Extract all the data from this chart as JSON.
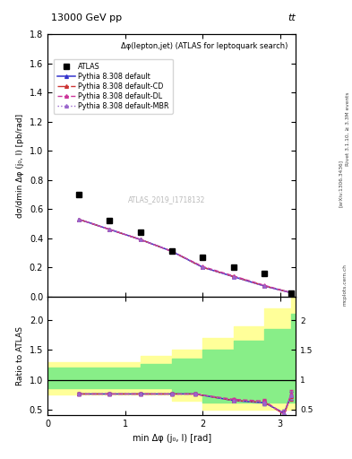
{
  "title_top": "13000 GeV pp",
  "title_right": "tt",
  "annotation": "Δφ(lepton,jet) (ATLAS for leptoquark search)",
  "watermark": "ATLAS_2019_I1718132",
  "ylabel_main": "dσ/dmin Δφ (j₀, l) [pb/rad]",
  "ylabel_ratio": "Ratio to ATLAS",
  "xlabel": "min Δφ (j₀, l) [rad]",
  "rivet_label": "Rivet 3.1.10, ≥ 3.3M events",
  "arxiv_label": "[arXiv:1306.3436]",
  "mcplots_label": "mcplots.cern.ch",
  "xlim": [
    0,
    3.2
  ],
  "ylim_main": [
    0,
    1.8
  ],
  "ylim_ratio": [
    0.4,
    2.4
  ],
  "atlas_x": [
    0.4,
    0.8,
    1.2,
    1.6,
    2.0,
    2.4,
    2.8,
    3.14
  ],
  "atlas_y": [
    0.7,
    0.52,
    0.44,
    0.31,
    0.27,
    0.2,
    0.16,
    0.025
  ],
  "mc_x": [
    0.4,
    0.8,
    1.2,
    1.6,
    2.0,
    2.4,
    2.8,
    3.14
  ],
  "default_y": [
    0.53,
    0.46,
    0.39,
    0.31,
    0.2,
    0.135,
    0.07,
    0.025
  ],
  "default_cd_y": [
    0.53,
    0.46,
    0.39,
    0.31,
    0.2,
    0.136,
    0.072,
    0.025
  ],
  "default_dl_y": [
    0.53,
    0.46,
    0.39,
    0.31,
    0.205,
    0.14,
    0.075,
    0.025
  ],
  "default_mbr_y": [
    0.53,
    0.46,
    0.39,
    0.31,
    0.2,
    0.135,
    0.07,
    0.025
  ],
  "ratio_x": [
    0.4,
    0.8,
    1.2,
    1.6,
    1.9,
    2.4,
    2.8,
    3.05,
    3.14
  ],
  "ratio_default": [
    0.76,
    0.76,
    0.76,
    0.76,
    0.76,
    0.65,
    0.61,
    0.44,
    0.73
  ],
  "ratio_default_cd": [
    0.76,
    0.76,
    0.76,
    0.76,
    0.76,
    0.65,
    0.62,
    0.42,
    0.72
  ],
  "ratio_default_dl": [
    0.76,
    0.76,
    0.76,
    0.76,
    0.76,
    0.67,
    0.64,
    0.42,
    0.76
  ],
  "ratio_default_mbr": [
    0.76,
    0.76,
    0.76,
    0.76,
    0.76,
    0.65,
    0.61,
    0.44,
    0.73
  ],
  "band_x_edges": [
    0.0,
    0.4,
    0.8,
    1.2,
    1.6,
    2.0,
    2.4,
    2.8,
    3.14,
    3.2
  ],
  "band_yellow_lo": [
    0.75,
    0.75,
    0.75,
    0.75,
    0.65,
    0.5,
    0.5,
    0.5,
    0.5,
    0.5
  ],
  "band_yellow_hi": [
    1.3,
    1.3,
    1.3,
    1.4,
    1.5,
    1.7,
    1.9,
    2.2,
    2.5,
    2.5
  ],
  "band_green_lo": [
    0.85,
    0.85,
    0.85,
    0.85,
    0.78,
    0.62,
    0.62,
    0.62,
    0.62,
    0.62
  ],
  "band_green_hi": [
    1.2,
    1.2,
    1.2,
    1.27,
    1.35,
    1.5,
    1.65,
    1.85,
    2.1,
    2.1
  ],
  "color_default": "#3333cc",
  "color_cd": "#cc3333",
  "color_dl": "#cc3399",
  "color_mbr": "#9966cc",
  "color_atlas": "#000000",
  "color_yellow": "#ffff99",
  "color_green": "#88ee88",
  "bg_color": "#ffffff"
}
